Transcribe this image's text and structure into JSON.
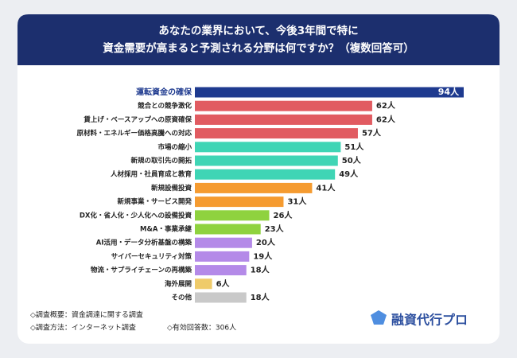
{
  "chart_data": {
    "type": "bar",
    "orientation": "horizontal",
    "title": [
      "あなたの業界において、今後3年間で特に",
      "資金需要が高まると予測される分野は何ですか？（複数回答可）"
    ],
    "categories": [
      "運転資金の確保",
      "競合との競争激化",
      "賃上げ・ベースアップへの原資確保",
      "原材料・エネルギー価格高騰への対応",
      "市場の縮小",
      "新規の取引先の開拓",
      "人材採用・社員育成と教育",
      "新規設備投資",
      "新規事業・サービス開発",
      "DX化・省人化・少人化への設備投資",
      "M&A・事業承継",
      "AI活用・データ分析基盤の構築",
      "サイバーセキュリティ対策",
      "物流・サプライチェーンの再構築",
      "海外展開",
      "その他"
    ],
    "values": [
      94,
      62,
      62,
      57,
      51,
      50,
      49,
      41,
      31,
      26,
      23,
      20,
      19,
      18,
      6,
      18
    ],
    "value_labels": [
      "94人",
      "62人",
      "62人",
      "57人",
      "51人",
      "50人",
      "49人",
      "41人",
      "31人",
      "26人",
      "23人",
      "20人",
      "19人",
      "18人",
      "6人",
      "18人"
    ],
    "colors": [
      "#1e3a8f",
      "#e15b61",
      "#e15b61",
      "#e15b61",
      "#3fd5b5",
      "#3fd5b5",
      "#3fd5b5",
      "#f59b30",
      "#f59b30",
      "#8fd23f",
      "#8fd23f",
      "#b48ae8",
      "#b48ae8",
      "#b48ae8",
      "#efcb6a",
      "#c9c9c9"
    ]
  },
  "notes": [
    "◇調査概要：資金調達に関する調査",
    "◇調査方法：インターネット調査",
    "◇有効回答数：306人"
  ],
  "logo": "融資代行プロ"
}
